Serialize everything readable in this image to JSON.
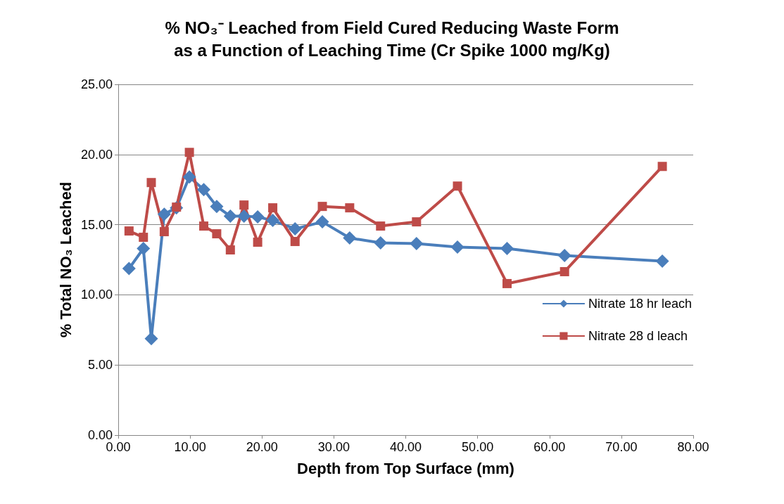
{
  "chart_data": {
    "type": "line",
    "title": "% NO₃⁻ Leached from Field Cured Reducing Waste Form\nas a Function of Leaching Time (Cr Spike 1000 mg/Kg)",
    "xlabel": "Depth from Top Surface (mm)",
    "ylabel": "% Total NO₃ Leached",
    "x": [
      1.5,
      3.5,
      4.6,
      6.4,
      8.1,
      9.9,
      11.9,
      13.7,
      15.6,
      17.5,
      19.4,
      21.5,
      24.6,
      28.4,
      32.2,
      36.5,
      41.5,
      47.2,
      54.1,
      62.1,
      75.7
    ],
    "series": [
      {
        "name": "Nitrate 18 hr leach",
        "color": "#4a7ebb",
        "marker": "diamond",
        "values": [
          11.87,
          13.3,
          6.88,
          15.75,
          16.2,
          18.4,
          17.5,
          16.3,
          15.6,
          15.6,
          15.55,
          15.3,
          14.7,
          15.2,
          14.05,
          13.7,
          13.65,
          13.4,
          13.3,
          12.8,
          12.4
        ]
      },
      {
        "name": "Nitrate 28 d leach",
        "color": "#be4b48",
        "marker": "square",
        "values": [
          14.55,
          14.1,
          18.0,
          14.5,
          16.25,
          20.15,
          14.9,
          14.35,
          13.2,
          16.4,
          13.75,
          16.2,
          13.8,
          16.3,
          16.2,
          14.9,
          15.2,
          17.75,
          10.8,
          11.65,
          19.15
        ]
      }
    ],
    "xlim": [
      0,
      80
    ],
    "xticks": [
      {
        "value": 0,
        "label": "0.00"
      },
      {
        "value": 10,
        "label": "10.00"
      },
      {
        "value": 20,
        "label": "20.00"
      },
      {
        "value": 30,
        "label": "30.00"
      },
      {
        "value": 40,
        "label": "40.00"
      },
      {
        "value": 50,
        "label": "50.00"
      },
      {
        "value": 60,
        "label": "60.00"
      },
      {
        "value": 70,
        "label": "70.00"
      },
      {
        "value": 80,
        "label": "80.00"
      }
    ],
    "ylim": [
      0,
      25
    ],
    "yticks": [
      {
        "value": 0,
        "label": "0.00"
      },
      {
        "value": 5,
        "label": "5.00"
      },
      {
        "value": 10,
        "label": "10.00"
      },
      {
        "value": 15,
        "label": "15.00"
      },
      {
        "value": 20,
        "label": "20.00"
      },
      {
        "value": 25,
        "label": "25.00"
      }
    ],
    "grid": "y",
    "legend": "right"
  }
}
